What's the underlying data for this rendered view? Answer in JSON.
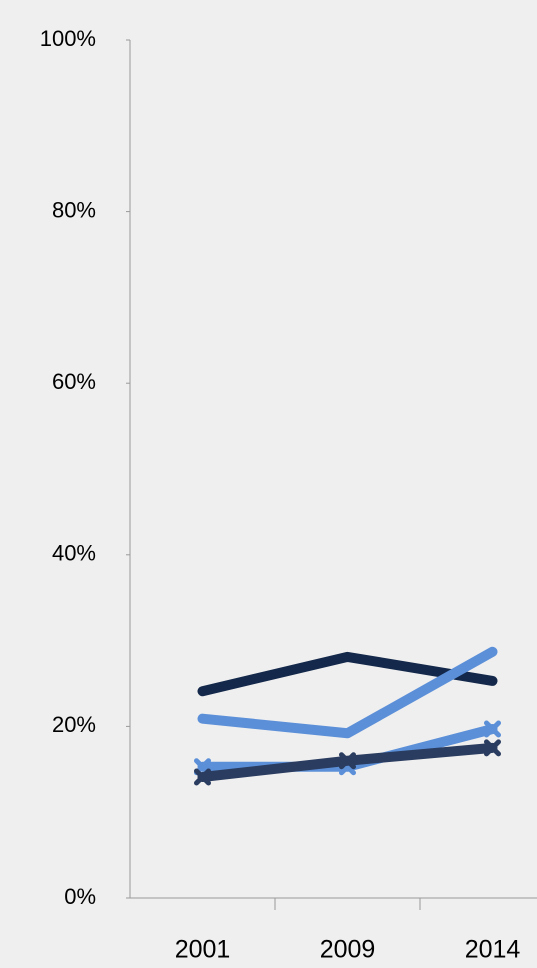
{
  "chart_data": {
    "type": "line",
    "categories": [
      "2001",
      "2009",
      "2014"
    ],
    "series": [
      {
        "color": "#13284a",
        "values": [
          24.1,
          28.1,
          25.3
        ]
      },
      {
        "color": "#5b8fd8",
        "values": [
          20.9,
          19.2,
          28.7
        ]
      },
      {
        "color": "#5b8fd8",
        "marker": "x",
        "values": [
          15.3,
          15.3,
          19.7
        ]
      },
      {
        "color": "#2a3c5f",
        "marker": "x",
        "values": [
          14.1,
          16.0,
          17.5
        ]
      }
    ],
    "ylim": [
      0,
      100
    ],
    "yticks": [
      {
        "value": 0,
        "label": "0%"
      },
      {
        "value": 20,
        "label": "20%"
      },
      {
        "value": 40,
        "label": "40%"
      },
      {
        "value": 60,
        "label": "60%"
      },
      {
        "value": 80,
        "label": "80%"
      },
      {
        "value": 100,
        "label": "100%"
      }
    ]
  }
}
